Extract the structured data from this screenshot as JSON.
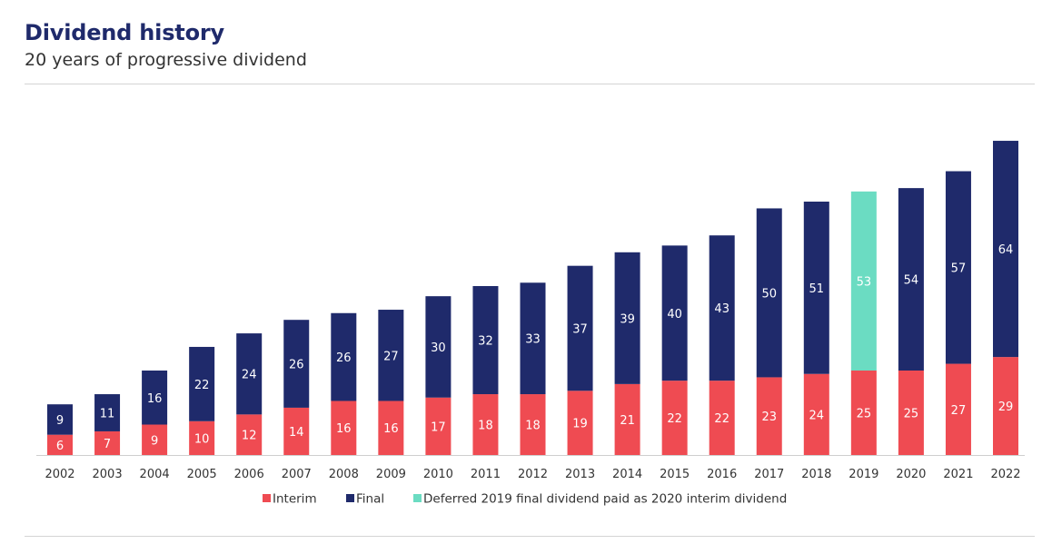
{
  "header": {
    "title": "Dividend history",
    "subtitle": "20 years of progressive dividend"
  },
  "colors": {
    "interim": "#ef4b52",
    "final": "#1f2a6b",
    "deferred": "#6bdcc2",
    "title": "#1f2a6b"
  },
  "chart_data": {
    "type": "bar",
    "stacked": true,
    "categories": [
      "2002",
      "2003",
      "2004",
      "2005",
      "2006",
      "2007",
      "2008",
      "2009",
      "2010",
      "2011",
      "2012",
      "2013",
      "2014",
      "2015",
      "2016",
      "2017",
      "2018",
      "2019",
      "2020",
      "2021",
      "2022"
    ],
    "series": [
      {
        "name": "Interim",
        "color": "#ef4b52",
        "values": [
          6,
          7,
          9,
          10,
          12,
          14,
          16,
          16,
          17,
          18,
          18,
          19,
          21,
          22,
          22,
          23,
          24,
          25,
          25,
          27,
          29
        ]
      },
      {
        "name": "Final",
        "color": "#1f2a6b",
        "values": [
          9,
          11,
          16,
          22,
          24,
          26,
          26,
          27,
          30,
          32,
          33,
          37,
          39,
          40,
          43,
          50,
          51,
          null,
          54,
          57,
          64
        ]
      },
      {
        "name": "Deferred 2019 final dividend paid as 2020 interim dividend",
        "color": "#6bdcc2",
        "values": [
          null,
          null,
          null,
          null,
          null,
          null,
          null,
          null,
          null,
          null,
          null,
          null,
          null,
          null,
          null,
          null,
          null,
          53,
          null,
          null,
          null
        ]
      }
    ],
    "legend_position": "bottom",
    "grid": false,
    "y_axis_shown": false,
    "ylim": [
      0,
      95
    ]
  }
}
